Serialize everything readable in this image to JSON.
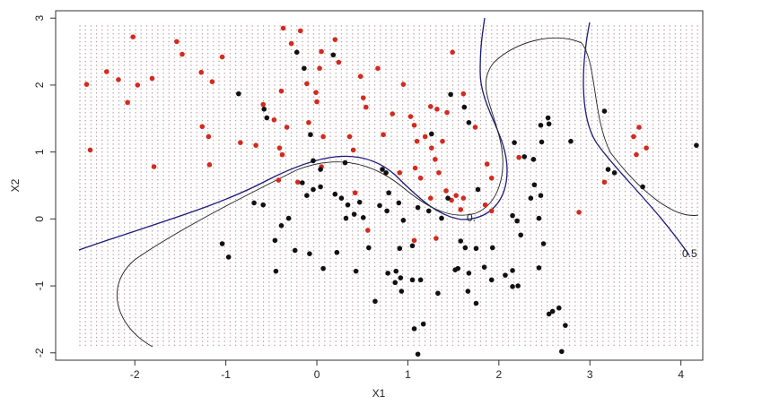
{
  "chart_data": {
    "type": "scatter",
    "x_label": "X1",
    "y_label": "X2",
    "xlim": [
      -2.87,
      4.24
    ],
    "ylim": [
      -2.11,
      3.11
    ],
    "xticks": [
      -2,
      -1,
      0,
      1,
      2,
      3,
      4
    ],
    "yticks": [
      -2,
      -1,
      0,
      1,
      2,
      3
    ],
    "annotations": [
      "0.",
      "0.5"
    ],
    "series": [
      {
        "color": "#d42a1e",
        "x": [
          -2.53,
          -2.49,
          -2.31,
          -2.18,
          -2.08,
          -2.02,
          -1.97,
          -1.81,
          -1.79,
          -1.54,
          -1.48,
          -1.27,
          -1.18,
          -1.15,
          -1.04,
          -1.26,
          -1.19,
          -0.84,
          -0.67,
          -0.59,
          -0.47,
          -0.39,
          -0.37,
          -0.28,
          -0.33,
          -0.41,
          -0.38,
          -0.18,
          -0.11,
          -0.09,
          0.0,
          0.03,
          0.05,
          -0.01,
          0.07,
          0.2,
          0.24,
          0.36,
          0.4,
          0.48,
          0.54,
          0.51,
          0.67,
          0.73,
          0.83,
          0.95,
          1.03,
          1.07,
          1.1,
          1.19,
          1.25,
          1.26,
          1.3,
          1.34,
          1.38,
          1.08,
          0.91,
          1.14,
          1.25,
          1.42,
          1.48,
          1.53,
          1.58,
          1.61,
          1.49,
          1.61,
          1.74,
          1.87,
          1.92,
          1.85,
          1.92,
          0.56,
          1.07,
          1.31,
          -0.21,
          0.05,
          0.42,
          -0.42,
          2.22,
          2.88,
          3.16,
          3.48,
          3.54,
          3.62,
          3.51,
          1.43,
          1.32
        ],
        "values": [
          2.01,
          1.03,
          2.2,
          2.08,
          1.74,
          2.72,
          2.0,
          2.1,
          0.78,
          2.65,
          2.46,
          2.19,
          0.81,
          2.05,
          2.42,
          1.38,
          1.23,
          1.14,
          1.1,
          1.71,
          1.48,
          1.91,
          2.85,
          2.62,
          1.37,
          1.06,
          0.96,
          2.81,
          2.02,
          1.44,
          1.75,
          2.25,
          2.5,
          1.89,
          1.23,
          2.68,
          2.34,
          1.23,
          1.03,
          2.13,
          1.67,
          1.81,
          2.25,
          1.26,
          1.57,
          2.01,
          1.53,
          1.4,
          1.16,
          1.23,
          1.68,
          1.06,
          0.89,
          0.69,
          1.16,
          0.76,
          0.69,
          0.61,
          0.31,
          0.42,
          0.28,
          0.35,
          0.14,
          0.31,
          2.49,
          1.87,
          1.37,
          0.82,
          0.61,
          0.21,
          0.12,
          -0.17,
          -0.32,
          -0.29,
          0.55,
          0.78,
          0.39,
          0.58,
          0.92,
          0.1,
          0.55,
          1.23,
          1.37,
          1.06,
          0.96,
          1.59,
          1.64
        ]
      },
      {
        "color": "#111111",
        "x": [
          -0.86,
          -0.58,
          -0.55,
          -0.22,
          -0.14,
          -0.07,
          -0.04,
          0.04,
          0.18,
          0.31,
          -0.04,
          0.04,
          -0.16,
          -0.11,
          -0.31,
          -0.59,
          -0.39,
          -0.46,
          -0.24,
          0.07,
          -0.08,
          0.22,
          0.2,
          0.27,
          0.32,
          0.34,
          0.41,
          0.47,
          0.51,
          0.57,
          0.72,
          0.76,
          0.79,
          0.69,
          0.77,
          0.9,
          0.95,
          1.11,
          1.23,
          1.37,
          1.44,
          1.47,
          1.26,
          1.62,
          1.67,
          1.77,
          1.58,
          1.63,
          1.75,
          1.55,
          1.52,
          1.67,
          1.84,
          1.92,
          1.93,
          2.07,
          2.15,
          2.15,
          2.21,
          0.87,
          0.92,
          0.86,
          0.93,
          1.05,
          1.14,
          1.05,
          0.91,
          0.64,
          1.07,
          1.33,
          1.66,
          1.75,
          2.17,
          2.28,
          2.38,
          2.46,
          2.55,
          2.47,
          2.79,
          2.35,
          2.46,
          2.44,
          2.49,
          2.44,
          2.24,
          2.15,
          3.16,
          3.2,
          3.27,
          3.58,
          4.17,
          2.55,
          2.59,
          2.66,
          2.73,
          2.69,
          2.2,
          2.39,
          2.54,
          -1.04,
          -0.97,
          -0.69,
          -0.45,
          0.43,
          0.78,
          1.17,
          1.11
        ],
        "values": [
          1.87,
          1.64,
          1.51,
          2.49,
          2.25,
          1.26,
          0.87,
          0.74,
          2.45,
          0.84,
          0.44,
          0.48,
          0.54,
          0.35,
          0.01,
          0.21,
          -0.1,
          -0.32,
          -0.47,
          -0.74,
          -0.52,
          -0.5,
          0.37,
          0.31,
          0.01,
          0.21,
          0.07,
          0.25,
          0.02,
          -0.43,
          0.74,
          0.69,
          0.39,
          0.2,
          0.12,
          0.24,
          -0.02,
          0.17,
          0.12,
          0.01,
          0.31,
          1.86,
          1.27,
          1.67,
          1.44,
          0.44,
          -0.33,
          -0.43,
          -0.44,
          -0.74,
          -0.76,
          -0.81,
          -0.72,
          -0.91,
          -0.43,
          -0.84,
          -0.77,
          -1.01,
          -1.0,
          -0.78,
          -0.88,
          -0.95,
          -1.08,
          -0.91,
          -0.91,
          -0.4,
          -0.44,
          -1.23,
          -1.64,
          -1.11,
          -1.08,
          -1.26,
          1.14,
          0.93,
          0.89,
          1.4,
          1.42,
          1.15,
          1.16,
          0.31,
          0.35,
          0.01,
          -0.37,
          -0.73,
          -0.24,
          0.05,
          1.61,
          0.74,
          0.69,
          0.48,
          1.1,
          -1.42,
          -1.38,
          -1.33,
          -1.59,
          -1.98,
          -0.03,
          0.51,
          1.51,
          -0.37,
          -0.57,
          0.24,
          -0.78,
          -0.78,
          -0.81,
          -1.57,
          -2.02
        ]
      }
    ]
  }
}
